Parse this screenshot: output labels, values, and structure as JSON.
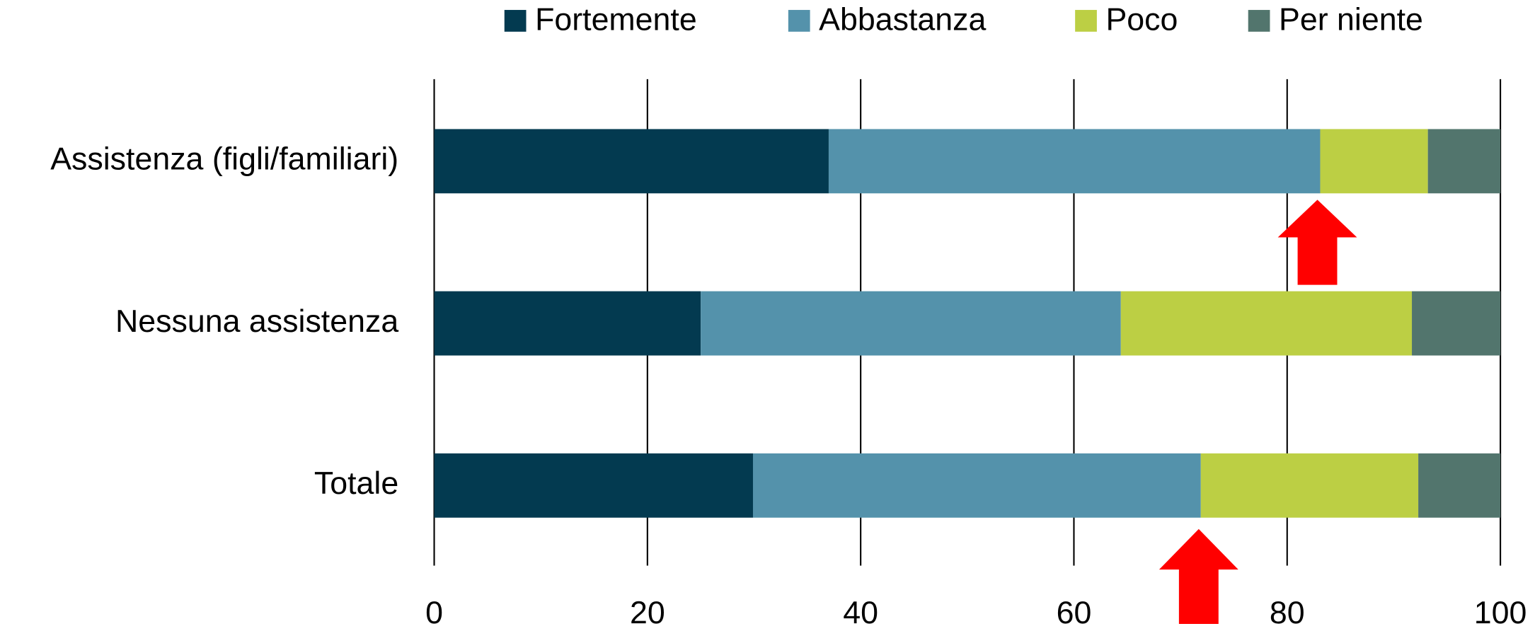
{
  "chart_data": {
    "type": "stacked_barh",
    "categories": [
      "Assistenza (figli/familiari)",
      "Nessuna assistenza",
      "Totale"
    ],
    "series": [
      {
        "name": "Fortemente",
        "color": "#033a50",
        "values": [
          37.0,
          25.0,
          29.9
        ]
      },
      {
        "name": "Abbastanza",
        "color": "#5492ab",
        "values": [
          46.1,
          39.4,
          42.0
        ]
      },
      {
        "name": "Poco",
        "color": "#bccf44",
        "values": [
          10.1,
          27.3,
          20.4
        ]
      },
      {
        "name": "Per niente",
        "color": "#52756d",
        "values": [
          6.8,
          8.3,
          7.7
        ]
      }
    ],
    "xlim": [
      0,
      100
    ],
    "xticks": [
      0,
      20,
      40,
      60,
      80,
      100
    ],
    "grid": true,
    "legend": "top"
  }
}
